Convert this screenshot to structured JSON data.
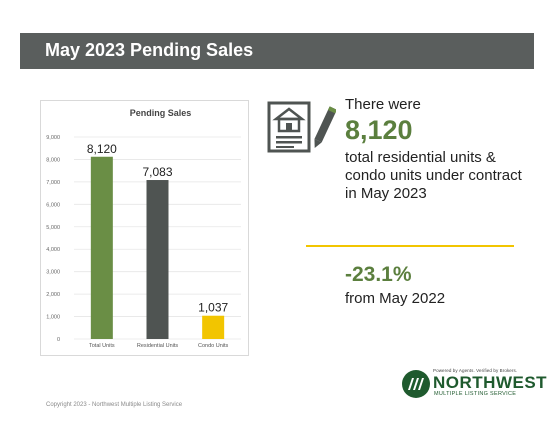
{
  "header": {
    "title": "May 2023 Pending Sales"
  },
  "chart_data": {
    "type": "bar",
    "title": "Pending Sales",
    "categories": [
      "Total Units",
      "Residential Units",
      "Condo Units"
    ],
    "values": [
      8120,
      7083,
      1037
    ],
    "value_labels": [
      "8,120",
      "7,083",
      "1,037"
    ],
    "bar_colors": [
      "#6a8e45",
      "#4f5452",
      "#f2c500"
    ],
    "ylim": [
      0,
      9000
    ],
    "yticks": [
      0,
      1000,
      2000,
      3000,
      4000,
      5000,
      6000,
      7000,
      8000,
      9000
    ],
    "ytick_labels": [
      "0",
      "1,000",
      "2,000",
      "3,000",
      "4,000",
      "5,000",
      "6,000",
      "7,000",
      "8,000",
      "9,000"
    ],
    "grid": true,
    "xlabel": "",
    "ylabel": ""
  },
  "stats": {
    "intro": "There were",
    "big_number": "8,120",
    "description": "total residential units & condo units under contract in May 2023",
    "change": "-23.1%",
    "change_desc": "from May 2022"
  },
  "icon": {
    "name": "house-contract-icon"
  },
  "logo": {
    "tagline": "Powered by Agents. Verified by Brokers.",
    "word": "NORTHWEST",
    "sub": "MULTIPLE LISTING SERVICE"
  },
  "footer": {
    "copyright": "Copyright 2023 - Northwest Multiple Listing Service"
  },
  "colors": {
    "accent_green": "#5b7f3e",
    "accent_yellow": "#f2c500",
    "header_gray": "#5a5e5d"
  }
}
